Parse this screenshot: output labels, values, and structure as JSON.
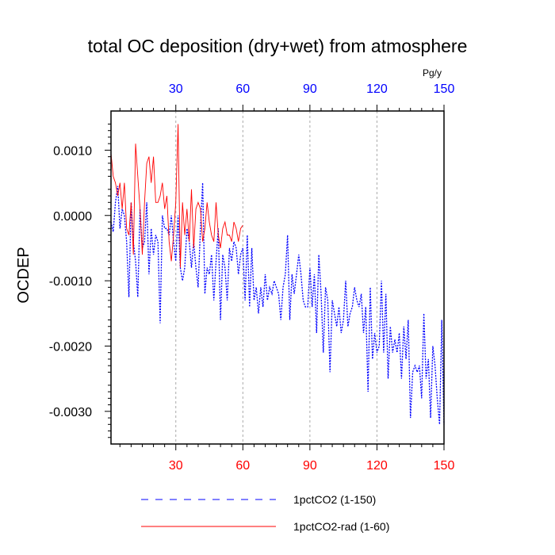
{
  "chart_data": {
    "type": "line",
    "title": "total OC deposition (dry+wet) from atmosphere",
    "ylabel": "OCDEP",
    "unit_label": "Pg/y",
    "xlim": [
      1,
      150
    ],
    "ylim": [
      -0.0035,
      0.0016
    ],
    "x_ticks": [
      30,
      60,
      90,
      120,
      150
    ],
    "x_tick_labels": [
      "30",
      "60",
      "90",
      "120",
      "150"
    ],
    "y_ticks": [
      0.001,
      0.0,
      -0.001,
      -0.002,
      -0.003
    ],
    "y_tick_labels": [
      "0.0010",
      "0.0000",
      "-0.0010",
      "-0.0020",
      "-0.0030"
    ],
    "grid": "vertical dashed at x ticks",
    "legend_position": "bottom",
    "colors": {
      "series1": "#0000ff",
      "series2": "#ff0000",
      "top_ticks": "#0000ff",
      "bottom_ticks": "#ff0000"
    },
    "series": [
      {
        "name": "1pctCO2 (1-150)",
        "style": "dashed",
        "color": "#0000ff",
        "x_start": 1,
        "values": [
          -0.0001,
          -0.00025,
          0.0002,
          0.00045,
          -0.0002,
          0.0001,
          0.0,
          -0.0004,
          -0.00125,
          0.0002,
          -0.0004,
          -0.0007,
          -0.00125,
          0.0001,
          -0.0005,
          -0.0004,
          0.0002,
          -0.0009,
          -0.0002,
          -0.0006,
          -0.0003,
          -0.0004,
          -0.00165,
          0.0,
          -0.0002,
          -0.0002,
          -0.0003,
          0.0,
          -0.0004,
          -0.0007,
          0.0,
          -0.0008,
          -0.001,
          -0.0008,
          -0.0002,
          -0.0004,
          -0.0008,
          -0.0004,
          -0.0008,
          -0.0011,
          -0.0002,
          0.0005,
          -0.0012,
          -0.0008,
          -0.0009,
          -0.0006,
          -0.0013,
          -0.0007,
          -0.0002,
          -0.0016,
          -0.0006,
          -0.0008,
          -0.0013,
          -0.0005,
          -0.0007,
          -0.0004,
          -0.0005,
          -0.0009,
          -0.0006,
          -0.0005,
          -0.0013,
          -0.0003,
          -0.0014,
          -0.0005,
          -0.0013,
          -0.0011,
          -0.0015,
          -0.0011,
          -0.0014,
          -0.0009,
          -0.0013,
          -0.0011,
          -0.0012,
          -0.001,
          -0.0011,
          -0.0012,
          -0.0016,
          -0.0011,
          -0.0009,
          -0.0003,
          -0.0016,
          -0.0009,
          -0.0012,
          -0.0009,
          -0.0006,
          -0.0009,
          -0.0013,
          -0.0014,
          -0.0014,
          -0.0008,
          -0.0014,
          -0.0009,
          -0.0018,
          -0.0006,
          -0.0012,
          -0.0021,
          -0.0011,
          -0.0013,
          -0.0024,
          -0.0013,
          -0.0015,
          -0.0017,
          -0.0014,
          -0.0018,
          -0.0016,
          -0.001,
          -0.0017,
          -0.0015,
          -0.0014,
          -0.0011,
          -0.0013,
          -0.0014,
          -0.0012,
          -0.0018,
          -0.0014,
          -0.0027,
          -0.0011,
          -0.0022,
          -0.0018,
          -0.0021,
          -0.002,
          -0.001,
          -0.0021,
          -0.0012,
          -0.0025,
          -0.0017,
          -0.0021,
          -0.0019,
          -0.0021,
          -0.0018,
          -0.0025,
          -0.0017,
          -0.0022,
          -0.0016,
          -0.0031,
          -0.0024,
          -0.0023,
          -0.0024,
          -0.0023,
          -0.0028,
          -0.0015,
          -0.0025,
          -0.0022,
          -0.0031,
          -0.002,
          -0.0023,
          -0.0028,
          -0.0032,
          -0.0016,
          -0.0032
        ]
      },
      {
        "name": "1pctCO2-rad (1-60)",
        "style": "solid",
        "color": "#ff0000",
        "x_start": 1,
        "values": [
          0.00095,
          0.0006,
          0.0005,
          0.0003,
          0.0005,
          0.0001,
          0.0005,
          -0.0002,
          -0.0003,
          0.0002,
          -0.0006,
          0.0011,
          0.0006,
          0.0001,
          -0.0006,
          0.0002,
          0.0008,
          0.0009,
          0.0005,
          0.0009,
          0.0002,
          0.0002,
          0.0003,
          0.0005,
          0.0001,
          0.0003,
          -0.0004,
          -0.0007,
          -0.0003,
          0.0002,
          0.0014,
          -0.0008,
          0.0002,
          -0.0003,
          0.0001,
          -0.0004,
          0.0004,
          -0.0005,
          0.0001,
          0.0002,
          0.0001,
          -0.0004,
          -0.0002,
          0.0002,
          -0.0001,
          -0.0003,
          -0.0004,
          0.0002,
          -0.0003,
          -0.0005,
          -0.0002,
          -0.0001,
          -0.0003,
          -0.0003,
          -0.0004,
          -0.0001,
          -0.0002,
          -0.0004,
          -0.0002,
          -0.00015
        ]
      }
    ]
  }
}
